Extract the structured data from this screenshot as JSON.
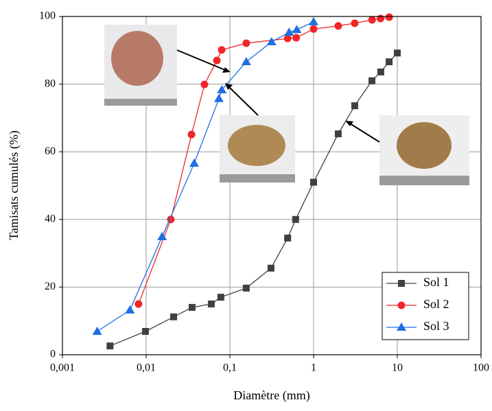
{
  "chart_data": {
    "type": "line",
    "xlabel": "Diamètre (mm)",
    "ylabel": "Tamisats cumulés (%)",
    "xscale": "log",
    "grid": true,
    "legend": "lower right",
    "xlim": [
      0.001,
      100
    ],
    "xticks": [
      {
        "value": 0.001,
        "label": "0,001"
      },
      {
        "value": 0.01,
        "label": "0,01"
      },
      {
        "value": 0.1,
        "label": "0,1"
      },
      1,
      10,
      100
    ],
    "ylim": [
      0,
      100
    ],
    "yticks": [
      0,
      20,
      40,
      60,
      80,
      100
    ],
    "series": [
      {
        "name": "Sol 1",
        "color": "#404040",
        "marker": "square",
        "x": [
          0.0037,
          0.0098,
          0.0213,
          0.0354,
          0.06,
          0.078,
          0.157,
          0.31,
          0.49,
          0.61,
          1.0,
          1.97,
          3.1,
          4.98,
          6.35,
          7.98,
          10
        ],
        "values": [
          2.6,
          6.9,
          11.2,
          14,
          15,
          17,
          19.7,
          25.6,
          34.5,
          40,
          51,
          65.3,
          73.6,
          81,
          83.6,
          86.6,
          89.2
        ]
      },
      {
        "name": "Sol 2",
        "color": "#f0262a",
        "marker": "circle",
        "x": [
          0.0081,
          0.0197,
          0.0348,
          0.0497,
          0.0699,
          0.0798,
          0.157,
          0.49,
          0.62,
          1.0,
          1.97,
          3.1,
          5.0,
          6.3,
          8.0
        ],
        "values": [
          15,
          40,
          65.1,
          79.9,
          87,
          90.1,
          92.1,
          93.5,
          93.7,
          96.3,
          97.2,
          98,
          99,
          99.4,
          99.8
        ]
      },
      {
        "name": "Sol 3",
        "color": "#1f6fe0",
        "marker": "triangle",
        "x": [
          0.0026,
          0.0064,
          0.0155,
          0.0375,
          0.074,
          0.08,
          0.157,
          0.315,
          0.51,
          0.63,
          1.0
        ],
        "values": [
          6.9,
          13.2,
          34.9,
          56.6,
          75.7,
          78.3,
          86.6,
          92.5,
          95.3,
          96.1,
          98.4
        ]
      }
    ]
  }
}
